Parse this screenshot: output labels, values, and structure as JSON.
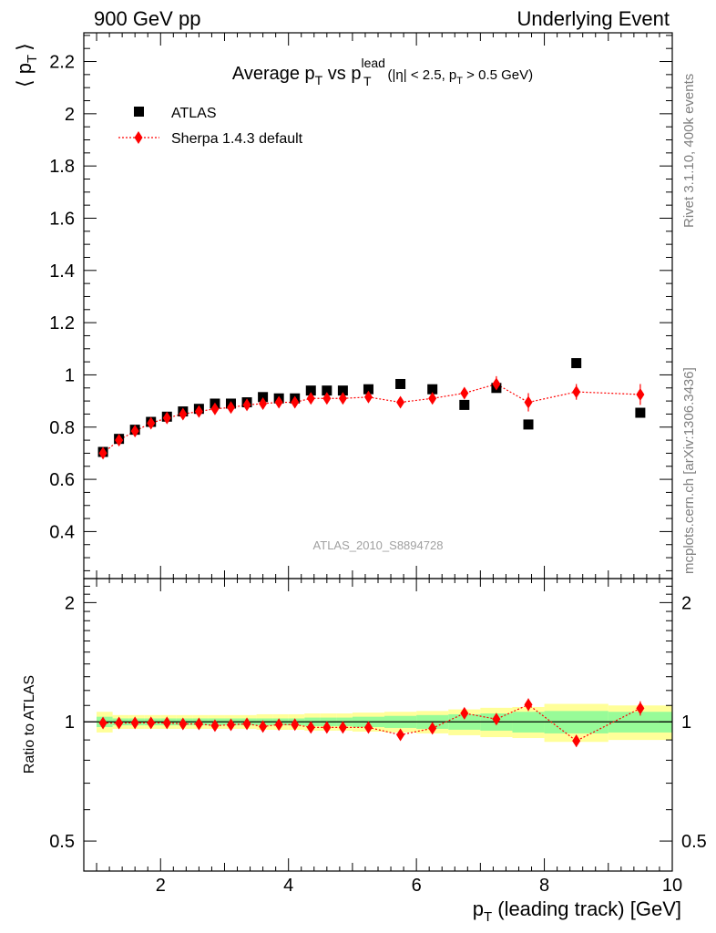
{
  "header": {
    "left": "900 GeV pp",
    "right": "Underlying Event"
  },
  "side_labels": {
    "rivet": "Rivet 3.1.10,  400k events",
    "mcplots": "mcplots.cern.ch [arXiv:1306.3436]"
  },
  "chart_data": {
    "type": "scatter",
    "title": {
      "main": "Average p",
      "main_sub": "T",
      "vs": " vs p",
      "vs_sub": "T",
      "vs_sup": "lead",
      "cut_a": "(|η| < 2.5, p",
      "cut_sub": "T",
      "cut_b": " > 0.5 GeV)"
    },
    "analysis_id": "ATLAS_2010_S8894728",
    "ylabel": {
      "open": "⟨ p",
      "sub": "T",
      "close": "⟩"
    },
    "ratio_ylabel": "Ratio to ATLAS",
    "xlabel": {
      "p": "p",
      "sub": "T",
      "rest": " (leading track) [GeV]"
    },
    "xlim": [
      0.8,
      10.0
    ],
    "ylim": [
      0.22,
      2.31
    ],
    "ratio_ylim": [
      0.42,
      2.3
    ],
    "ratio_log_scale": true,
    "x_ticks": [
      "2",
      "4",
      "6",
      "8",
      "10"
    ],
    "y_ticks": [
      "0.4",
      "0.6",
      "0.8",
      "1",
      "1.2",
      "1.4",
      "1.6",
      "1.8",
      "2",
      "2.2"
    ],
    "ratio_ticks": [
      "0.5",
      "1",
      "2"
    ],
    "legend_position": "top-left",
    "colors": {
      "data": "#000000",
      "mc": "#ff0000",
      "band_inner": "#98fb98",
      "band_outer": "#ffff99"
    },
    "x": [
      1.1,
      1.35,
      1.6,
      1.85,
      2.1,
      2.35,
      2.6,
      2.85,
      3.1,
      3.35,
      3.6,
      3.85,
      4.1,
      4.35,
      4.6,
      4.85,
      5.25,
      5.75,
      6.25,
      6.75,
      7.25,
      7.75,
      8.5,
      9.5
    ],
    "x_edges": [
      1.0,
      1.25,
      1.5,
      1.75,
      2.0,
      2.25,
      2.5,
      2.75,
      3.0,
      3.25,
      3.5,
      3.75,
      4.0,
      4.25,
      4.5,
      4.75,
      5.0,
      5.5,
      6.0,
      6.5,
      7.0,
      7.5,
      8.0,
      9.0,
      10.0
    ],
    "series": [
      {
        "name": "ATLAS",
        "marker": "square",
        "values": [
          0.705,
          0.755,
          0.79,
          0.82,
          0.84,
          0.86,
          0.87,
          0.89,
          0.89,
          0.895,
          0.915,
          0.91,
          0.91,
          0.94,
          0.94,
          0.94,
          0.945,
          0.965,
          0.945,
          0.885,
          0.95,
          0.81,
          1.045,
          0.855
        ]
      },
      {
        "name": "Sherpa 1.4.3 default",
        "marker": "diamond",
        "values": [
          0.7,
          0.75,
          0.785,
          0.815,
          0.835,
          0.85,
          0.86,
          0.87,
          0.875,
          0.885,
          0.89,
          0.895,
          0.895,
          0.91,
          0.91,
          0.91,
          0.915,
          0.895,
          0.91,
          0.93,
          0.965,
          0.895,
          0.935,
          0.925
        ],
        "errors": [
          0.005,
          0.005,
          0.005,
          0.005,
          0.005,
          0.005,
          0.005,
          0.005,
          0.005,
          0.005,
          0.005,
          0.005,
          0.005,
          0.006,
          0.006,
          0.006,
          0.008,
          0.012,
          0.015,
          0.02,
          0.03,
          0.035,
          0.03,
          0.04
        ]
      }
    ],
    "ratio": {
      "values": [
        0.993,
        0.993,
        0.994,
        0.994,
        0.994,
        0.988,
        0.988,
        0.978,
        0.983,
        0.989,
        0.973,
        0.984,
        0.984,
        0.968,
        0.968,
        0.968,
        0.968,
        0.927,
        0.963,
        1.051,
        1.016,
        1.105,
        0.895,
        1.082
      ],
      "errors": [
        0.007,
        0.007,
        0.007,
        0.007,
        0.007,
        0.007,
        0.007,
        0.007,
        0.007,
        0.007,
        0.007,
        0.007,
        0.007,
        0.008,
        0.008,
        0.008,
        0.01,
        0.013,
        0.016,
        0.022,
        0.03,
        0.04,
        0.03,
        0.045
      ],
      "band_inner": [
        0.03,
        0.02,
        0.02,
        0.02,
        0.02,
        0.02,
        0.02,
        0.02,
        0.02,
        0.02,
        0.02,
        0.02,
        0.02,
        0.025,
        0.025,
        0.025,
        0.03,
        0.035,
        0.04,
        0.045,
        0.05,
        0.06,
        0.065,
        0.06
      ],
      "band_outer": [
        0.06,
        0.04,
        0.04,
        0.04,
        0.04,
        0.04,
        0.04,
        0.04,
        0.04,
        0.04,
        0.045,
        0.045,
        0.045,
        0.05,
        0.05,
        0.05,
        0.055,
        0.06,
        0.065,
        0.075,
        0.085,
        0.09,
        0.11,
        0.1
      ]
    }
  }
}
